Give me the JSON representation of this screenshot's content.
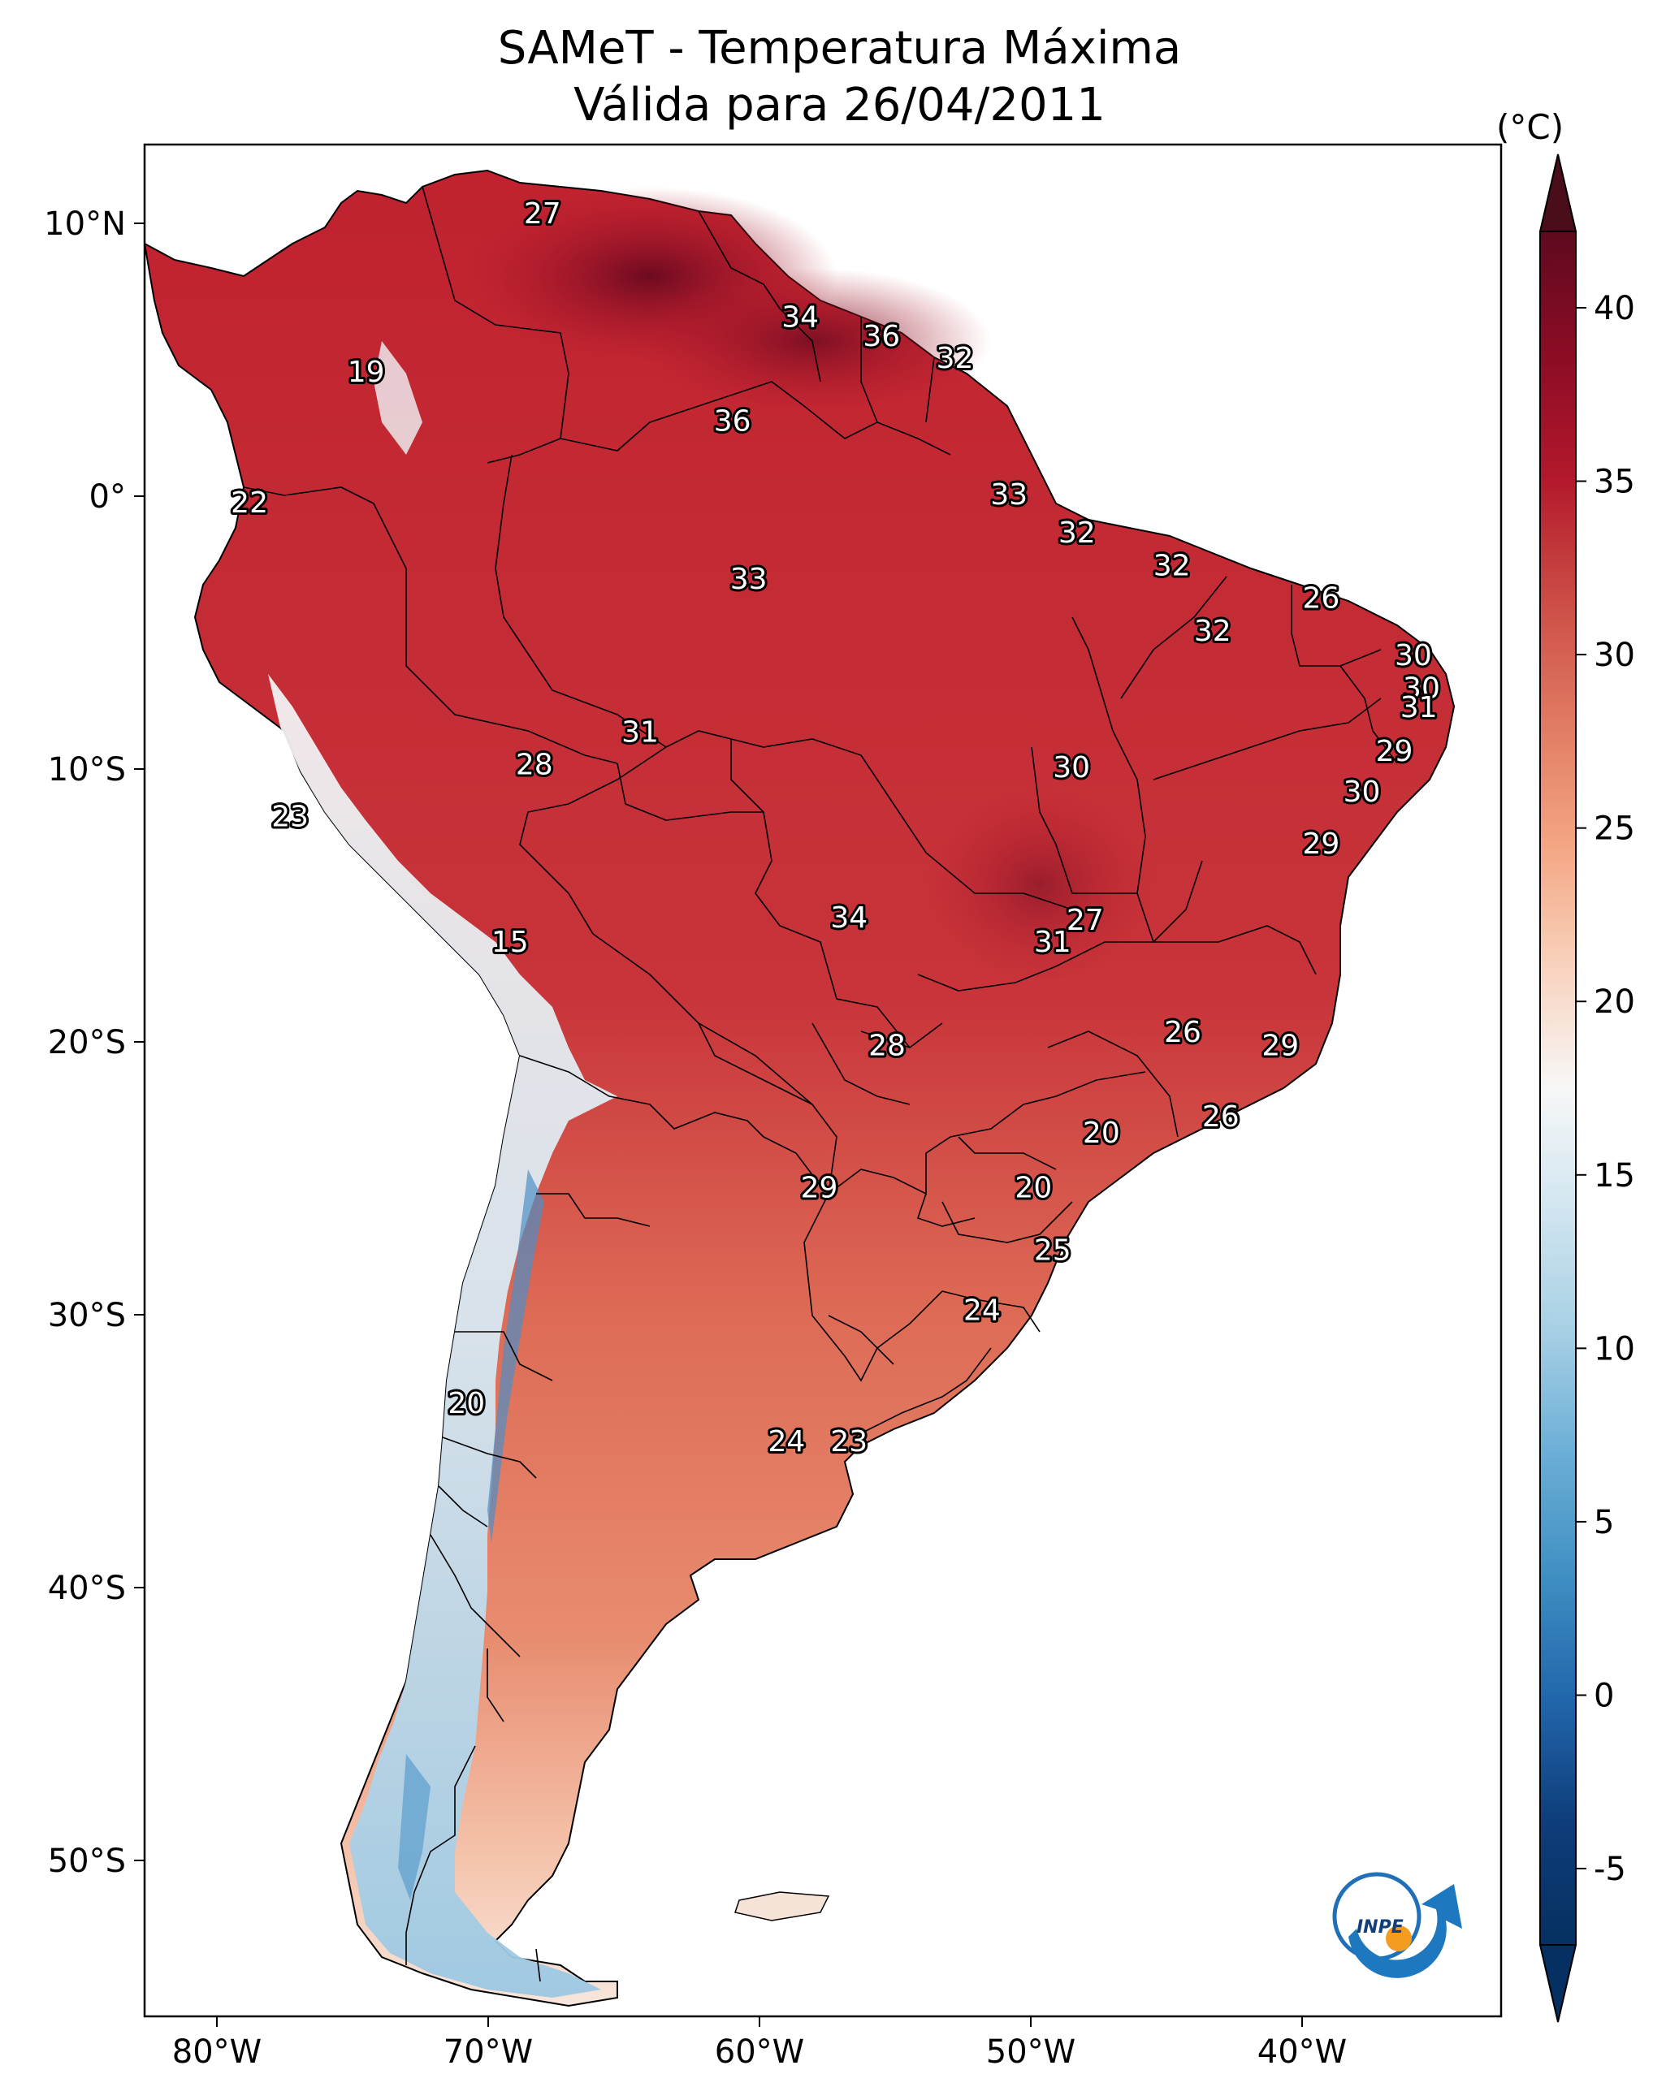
{
  "title_line1": "SAMeT - Temperatura Máxima",
  "title_line2": "Válida para 26/04/2011",
  "colorbar": {
    "unit": "(°C)",
    "ticks": [
      "40",
      "35",
      "30",
      "25",
      "20",
      "15",
      "10",
      "5",
      "0",
      "-5"
    ],
    "colors": [
      "#5e0a1e",
      "#8b0c25",
      "#b2182b",
      "#cb4c45",
      "#e07a62",
      "#f4a582",
      "#f8d2bd",
      "#f7f7f7",
      "#d1e5f0",
      "#a6cfe4",
      "#6aaed6",
      "#3f8ec2",
      "#2166ac",
      "#0e3d7a",
      "#053061"
    ]
  },
  "axes": {
    "lat_labels": [
      "10°N",
      "0°",
      "10°S",
      "20°S",
      "30°S",
      "40°S",
      "50°S"
    ],
    "lon_labels": [
      "80°W",
      "70°W",
      "60°W",
      "50°W",
      "40°W"
    ]
  },
  "logo_text": "INPE",
  "map_labels": [
    {
      "value": "27",
      "lon": -68.0,
      "lat": 10.3
    },
    {
      "value": "19",
      "lon": -74.5,
      "lat": 4.5
    },
    {
      "value": "22",
      "lon": -78.8,
      "lat": -0.3
    },
    {
      "value": "34",
      "lon": -58.5,
      "lat": 6.5
    },
    {
      "value": "36",
      "lon": -55.5,
      "lat": 5.8
    },
    {
      "value": "32",
      "lon": -52.8,
      "lat": 5.0
    },
    {
      "value": "36",
      "lon": -61.0,
      "lat": 2.7
    },
    {
      "value": "33",
      "lon": -50.8,
      "lat": 0.0
    },
    {
      "value": "32",
      "lon": -48.3,
      "lat": -1.4
    },
    {
      "value": "32",
      "lon": -44.8,
      "lat": -2.6
    },
    {
      "value": "33",
      "lon": -60.4,
      "lat": -3.1
    },
    {
      "value": "26",
      "lon": -39.3,
      "lat": -3.8
    },
    {
      "value": "32",
      "lon": -43.3,
      "lat": -5.0
    },
    {
      "value": "30",
      "lon": -35.9,
      "lat": -5.9
    },
    {
      "value": "30",
      "lon": -35.6,
      "lat": -7.1
    },
    {
      "value": "31",
      "lon": -35.7,
      "lat": -7.8
    },
    {
      "value": "31",
      "lon": -64.4,
      "lat": -8.7
    },
    {
      "value": "28",
      "lon": -68.3,
      "lat": -9.9
    },
    {
      "value": "30",
      "lon": -48.5,
      "lat": -10.0
    },
    {
      "value": "29",
      "lon": -36.6,
      "lat": -9.4
    },
    {
      "value": "30",
      "lon": -37.8,
      "lat": -10.9
    },
    {
      "value": "23",
      "lon": -77.3,
      "lat": -11.8
    },
    {
      "value": "29",
      "lon": -39.3,
      "lat": -12.8
    },
    {
      "value": "34",
      "lon": -56.7,
      "lat": -15.5
    },
    {
      "value": "27",
      "lon": -48.0,
      "lat": -15.6
    },
    {
      "value": "31",
      "lon": -49.2,
      "lat": -16.4
    },
    {
      "value": "15",
      "lon": -69.2,
      "lat": -16.4
    },
    {
      "value": "26",
      "lon": -44.4,
      "lat": -19.7
    },
    {
      "value": "28",
      "lon": -55.3,
      "lat": -20.2
    },
    {
      "value": "29",
      "lon": -40.8,
      "lat": -20.2
    },
    {
      "value": "26",
      "lon": -43.0,
      "lat": -22.8
    },
    {
      "value": "20",
      "lon": -47.4,
      "lat": -23.4
    },
    {
      "value": "29",
      "lon": -57.8,
      "lat": -25.4
    },
    {
      "value": "20",
      "lon": -49.9,
      "lat": -25.4
    },
    {
      "value": "25",
      "lon": -49.2,
      "lat": -27.7
    },
    {
      "value": "24",
      "lon": -51.8,
      "lat": -29.9
    },
    {
      "value": "20",
      "lon": -70.8,
      "lat": -33.3
    },
    {
      "value": "24",
      "lon": -59.0,
      "lat": -34.7
    },
    {
      "value": "23",
      "lon": -56.7,
      "lat": -34.7
    }
  ]
}
